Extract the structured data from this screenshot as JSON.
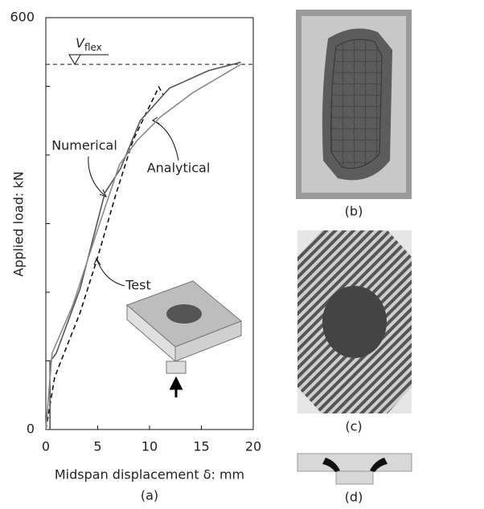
{
  "chart_data": {
    "type": "line",
    "xlabel": "Midspan displacement δ: mm",
    "ylabel": "Applied load: kN",
    "caption": "(a)",
    "xlim": [
      0,
      20
    ],
    "xticks": [
      0,
      5,
      10,
      15,
      20
    ],
    "ylim": [
      0,
      600
    ],
    "yticks": [
      0,
      600
    ],
    "yminor_ticks": [
      100,
      200,
      300,
      400,
      500
    ],
    "reference_line": {
      "symbol": "V",
      "subscript": "flex",
      "value": 532
    },
    "series": [
      {
        "name": "Test",
        "color": "#111111",
        "dash": true,
        "x": [
          0,
          0.85,
          1.6,
          3.3,
          5.0,
          6.8,
          8.4,
          9.9,
          10.9,
          11.3
        ],
        "values": [
          0,
          76,
          105,
          170,
          251,
          345,
          421,
          468,
          499,
          488
        ]
      },
      {
        "name": "Numerical",
        "color": "#555555",
        "dash": false,
        "x": [
          0.4,
          0.4,
          1,
          3.3,
          5.7,
          7.2,
          9.1,
          11.9,
          15.7,
          18.8
        ],
        "values": [
          0,
          99,
          111,
          205,
          345,
          380,
          450,
          497,
          523,
          535
        ]
      },
      {
        "name": "Analytical",
        "color": "#8a8a8a",
        "dash": false,
        "x": [
          0,
          0.6,
          2.6,
          4.9,
          7.1,
          8.8,
          11.1,
          14.2,
          18.8
        ],
        "values": [
          0,
          111,
          181,
          287,
          386,
          421,
          456,
          491,
          532
        ]
      }
    ]
  },
  "panel_labels": [
    "(b)",
    "(c)",
    "(d)"
  ]
}
